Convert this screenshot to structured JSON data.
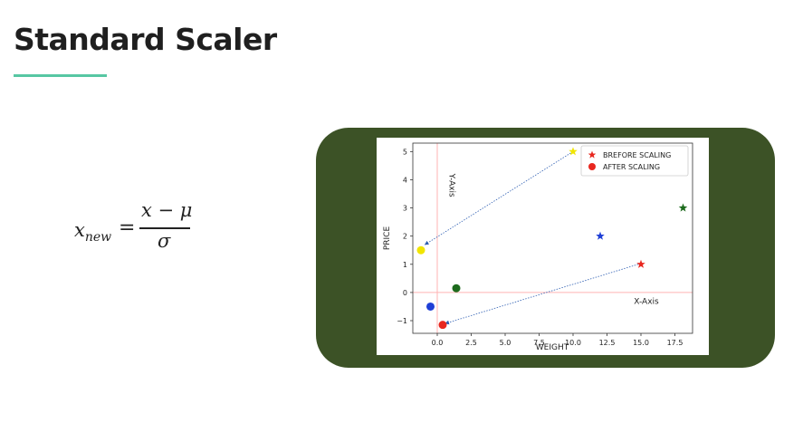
{
  "slide": {
    "title": "Standard Scaler"
  },
  "formula": {
    "lhs": "x",
    "lhs_sub": "new",
    "equals": "=",
    "numerator": "x − μ",
    "denominator": "σ"
  },
  "colors": {
    "accent": "#57c7a3",
    "frame": "#3c5226"
  },
  "chart_data": {
    "type": "scatter",
    "xlabel": "WEIGHT",
    "ylabel": "PRICE",
    "xlim": [
      -1.8,
      18.8
    ],
    "ylim": [
      -1.45,
      5.3
    ],
    "xticks": [
      0.0,
      2.5,
      5.0,
      7.5,
      10.0,
      12.5,
      15.0,
      17.5
    ],
    "xtick_labels": [
      "0.0",
      "2.5",
      "5.0",
      "7.5",
      "10.0",
      "12.5",
      "15.0",
      "17.5"
    ],
    "yticks": [
      -1,
      0,
      1,
      2,
      3,
      4,
      5
    ],
    "ytick_labels": [
      "−1",
      "0",
      "1",
      "2",
      "3",
      "4",
      "5"
    ],
    "legend": {
      "location": "top-right",
      "entries": [
        {
          "label": "BREFORE SCALING",
          "marker": "star",
          "color": "#e8271f"
        },
        {
          "label": "AFTER SCALING",
          "marker": "circle",
          "color": "#e8271f"
        }
      ]
    },
    "series": [
      {
        "name": "BREFORE SCALING",
        "marker": "star",
        "points": [
          {
            "x": 10.0,
            "y": 5.0,
            "color": "#f1e500"
          },
          {
            "x": 12.0,
            "y": 2.0,
            "color": "#1f3fd6"
          },
          {
            "x": 15.0,
            "y": 1.0,
            "color": "#e8271f"
          },
          {
            "x": 18.1,
            "y": 3.0,
            "color": "#1d6b1d"
          }
        ]
      },
      {
        "name": "AFTER SCALING",
        "marker": "circle",
        "points": [
          {
            "x": -1.2,
            "y": 1.5,
            "color": "#f1e500"
          },
          {
            "x": -0.5,
            "y": -0.5,
            "color": "#1f3fd6"
          },
          {
            "x": 0.4,
            "y": -1.15,
            "color": "#e8271f"
          },
          {
            "x": 1.4,
            "y": 0.15,
            "color": "#1d6b1d"
          }
        ]
      }
    ],
    "reference_lines": [
      {
        "axis": "x",
        "value": 0,
        "color": "#ffb3b3"
      },
      {
        "axis": "y",
        "value": 0,
        "color": "#ffb3b3"
      }
    ],
    "annotations": [
      {
        "text": "Y-Axis",
        "x": 0.9,
        "y": 3.8,
        "rotation": 90
      },
      {
        "text": "X-Axis",
        "x": 15.4,
        "y": -0.4,
        "rotation": 0
      }
    ],
    "arrows": [
      {
        "from": [
          10.0,
          5.0
        ],
        "to": [
          -0.9,
          1.7
        ]
      },
      {
        "from": [
          14.8,
          1.0
        ],
        "to": [
          0.6,
          -1.1
        ]
      }
    ]
  }
}
